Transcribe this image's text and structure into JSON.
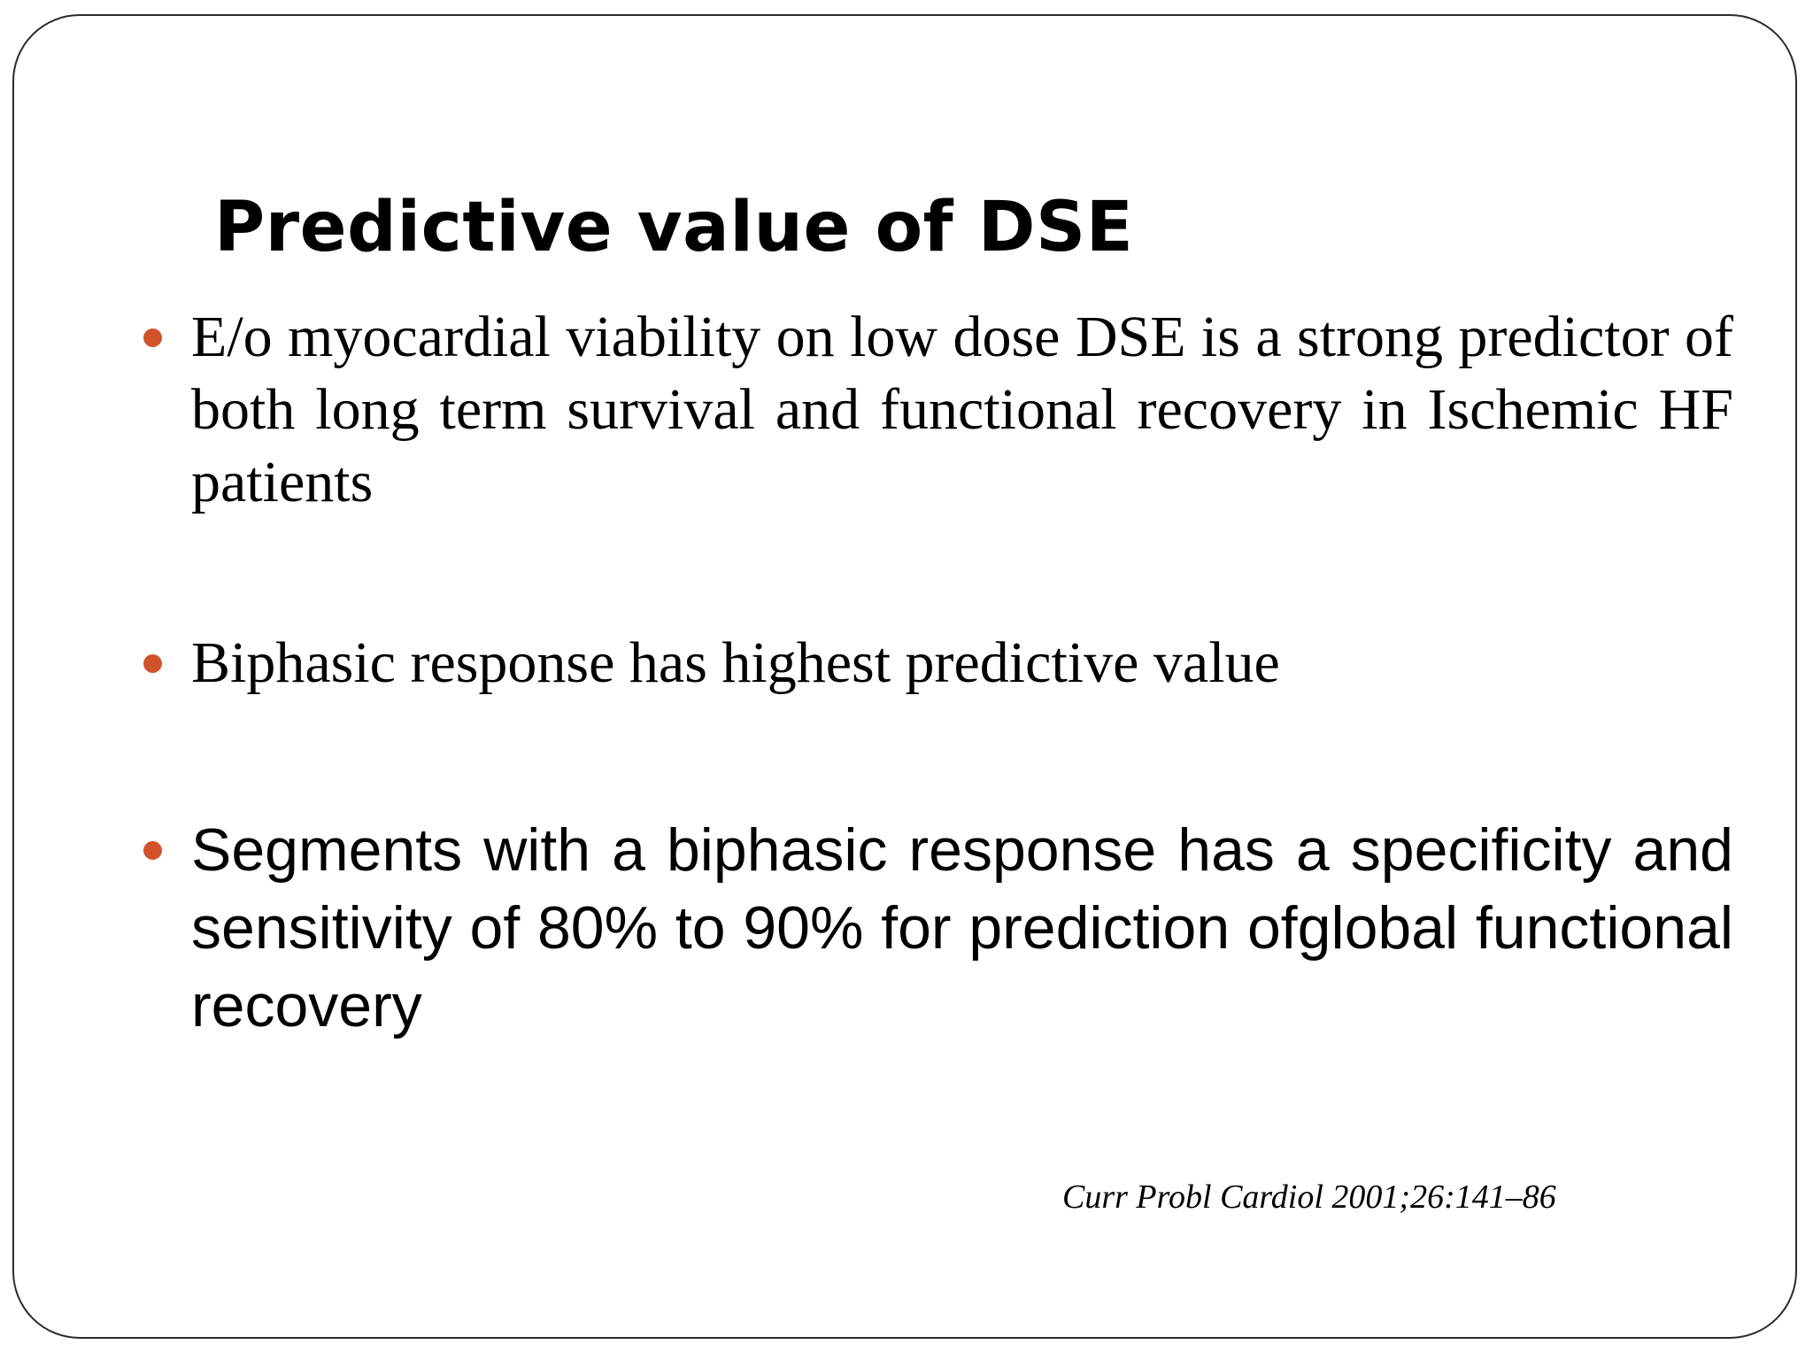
{
  "slide": {
    "title": "Predictive value of DSE",
    "bullets": [
      {
        "text": "E/o myocardial viability on low dose DSE is a strong predictor of both long term survival and functional recovery in Ischemic HF patients"
      },
      {
        "text": "Biphasic response has highest predictive value"
      },
      {
        "text": "Segments with a biphasic response has a specificity and sensitivity of 80% to 90% for prediction ofglobal functional recovery"
      }
    ],
    "citation": "Curr Probl Cardiol 2001;26:141–86",
    "accent_color": "#d2522c",
    "border_color": "#2b2b2b"
  }
}
